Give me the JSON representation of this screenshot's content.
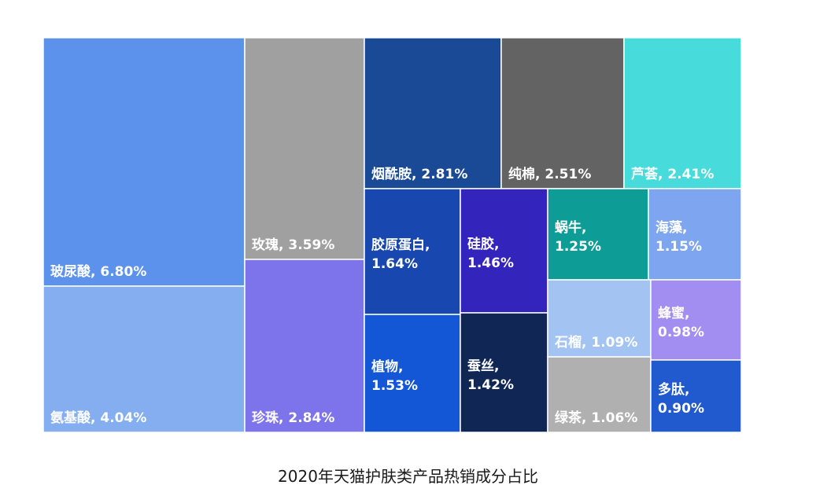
{
  "chart_data": {
    "type": "treemap",
    "title": "2020年天猫护肤类产品热销成分占比",
    "label_separator": ", ",
    "items": [
      {
        "name": "玻尿酸",
        "value": "6.80%",
        "color": "#5d92ec"
      },
      {
        "name": "氨基酸",
        "value": "4.04%",
        "color": "#85aef0"
      },
      {
        "name": "玫瑰",
        "value": "3.59%",
        "color": "#a0a0a0"
      },
      {
        "name": "珍珠",
        "value": "2.84%",
        "color": "#7d73ea"
      },
      {
        "name": "烟酰胺",
        "value": "2.81%",
        "color": "#1a4a96"
      },
      {
        "name": "纯棉",
        "value": "2.51%",
        "color": "#636363"
      },
      {
        "name": "芦荟",
        "value": "2.41%",
        "color": "#47dbdb"
      },
      {
        "name": "胶原蛋白",
        "value": "1.64%",
        "color": "#1947b0"
      },
      {
        "name": "硅胶",
        "value": "1.46%",
        "color": "#3324bb"
      },
      {
        "name": "蜗牛",
        "value": "1.25%",
        "color": "#0e9d96"
      },
      {
        "name": "海藻",
        "value": "1.15%",
        "color": "#7ea6f0"
      },
      {
        "name": "植物",
        "value": "1.53%",
        "color": "#1457d6"
      },
      {
        "name": "蚕丝",
        "value": "1.42%",
        "color": "#102756"
      },
      {
        "name": "石榴",
        "value": "1.09%",
        "color": "#a3c4f3"
      },
      {
        "name": "蜂蜜",
        "value": "0.98%",
        "color": "#a28ef0"
      },
      {
        "name": "绿茶",
        "value": "1.06%",
        "color": "#b0b0b0"
      },
      {
        "name": "多肽",
        "value": "0.90%",
        "color": "#2159cf"
      }
    ]
  }
}
